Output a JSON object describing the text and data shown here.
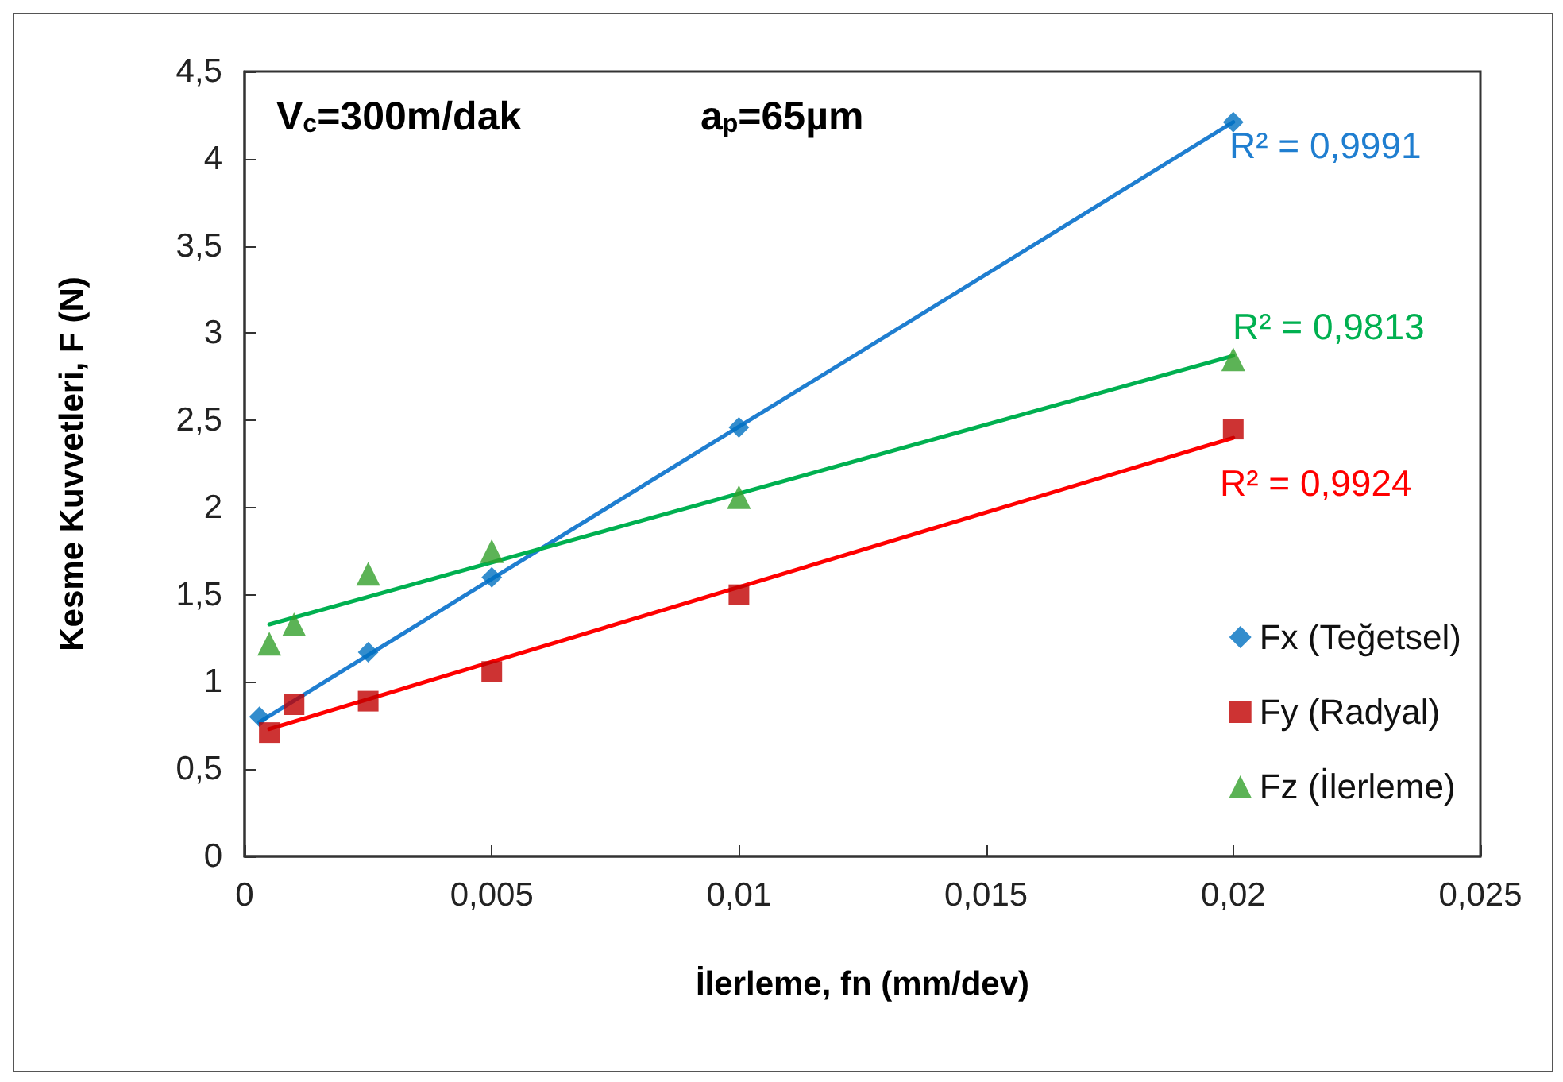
{
  "chart_data": {
    "type": "scatter",
    "xlabel": "İlerleme, fn (mm/dev)",
    "ylabel": "Kesme Kuvvetleri, F (N)",
    "annotations": [
      "V$_{c}$=300m/dak",
      "a$_{p}$=65µm"
    ],
    "xlim": [
      0,
      0.025
    ],
    "xticks": [
      {
        "value": 0,
        "label": "0"
      },
      {
        "value": 0.005,
        "label": "0,005"
      },
      {
        "value": 0.01,
        "label": "0,01"
      },
      {
        "value": 0.015,
        "label": "0,015"
      },
      {
        "value": 0.02,
        "label": "0,02"
      },
      {
        "value": 0.025,
        "label": "0,025"
      }
    ],
    "ylim": [
      0,
      4.5
    ],
    "yticks": [
      0,
      {
        "value": 0.5,
        "label": "0,5"
      },
      1,
      {
        "value": 1.5,
        "label": "1,5"
      },
      2,
      {
        "value": 2.5,
        "label": "2,5"
      },
      3,
      {
        "value": 3.5,
        "label": "3,5"
      },
      4,
      {
        "value": 4.5,
        "label": "4,5"
      }
    ],
    "grid": false,
    "legend": "right",
    "series": [
      {
        "name": "Fx (Teğetsel)",
        "marker": "diamond",
        "color": "#0070c0",
        "x": [
          0.0003,
          0.0025,
          0.005,
          0.01,
          0.02
        ],
        "values": [
          0.8,
          1.17,
          1.6,
          2.46,
          4.21
        ]
      },
      {
        "name": "Fy (Radyal)",
        "marker": "square",
        "color": "#c00000",
        "x": [
          0.0005,
          0.001,
          0.0025,
          0.005,
          0.01,
          0.02
        ],
        "values": [
          0.71,
          0.87,
          0.89,
          1.06,
          1.5,
          2.45
        ]
      },
      {
        "name": "Fz (İlerleme)",
        "marker": "triangle",
        "color": "#33a02c",
        "x": [
          0.0005,
          0.001,
          0.0025,
          0.005,
          0.01,
          0.02
        ],
        "values": [
          1.22,
          1.33,
          1.62,
          1.75,
          2.06,
          2.85
        ]
      },
      {
        "name": "R² = 0,9991",
        "type": "line",
        "marker": "none",
        "color": "#1f7ed0",
        "x": [
          0.0003,
          0.02
        ],
        "values": [
          0.77,
          4.21
        ]
      },
      {
        "name": "R² = 0,9813",
        "type": "line",
        "marker": "none",
        "color": "#00b050",
        "x": [
          0.0005,
          0.02
        ],
        "values": [
          1.33,
          2.87
        ]
      },
      {
        "name": "R² = 0,9924",
        "type": "line",
        "marker": "none",
        "color": "#ff0000",
        "x": [
          0.0005,
          0.02
        ],
        "values": [
          0.73,
          2.4
        ]
      }
    ]
  }
}
